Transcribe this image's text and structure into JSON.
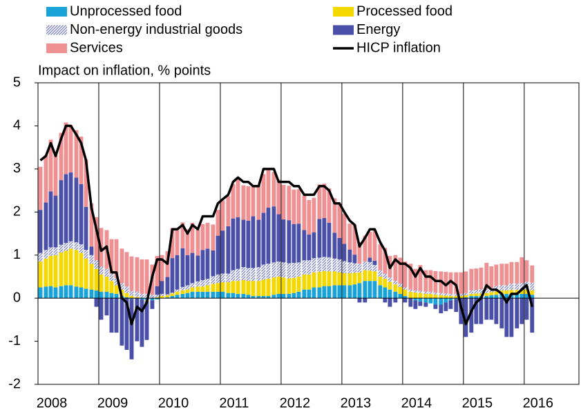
{
  "chart_data": {
    "type": "bar",
    "stacked": true,
    "ylabel": "Impact on inflation,  % points",
    "ylim": [
      -2,
      5
    ],
    "yticks": [
      -2,
      -1,
      0,
      1,
      2,
      3,
      4,
      5
    ],
    "xlim": [
      2008,
      2016.9
    ],
    "xticks": [
      2008,
      2009,
      2010,
      2011,
      2012,
      2013,
      2014,
      2015,
      2016
    ],
    "grid": true,
    "x": [
      2008.04,
      2008.13,
      2008.21,
      2008.29,
      2008.38,
      2008.46,
      2008.54,
      2008.63,
      2008.71,
      2008.79,
      2008.88,
      2008.96,
      2009.04,
      2009.13,
      2009.21,
      2009.29,
      2009.38,
      2009.46,
      2009.54,
      2009.63,
      2009.71,
      2009.79,
      2009.88,
      2009.96,
      2010.04,
      2010.13,
      2010.21,
      2010.29,
      2010.38,
      2010.46,
      2010.54,
      2010.63,
      2010.71,
      2010.79,
      2010.88,
      2010.96,
      2011.04,
      2011.13,
      2011.21,
      2011.29,
      2011.38,
      2011.46,
      2011.54,
      2011.63,
      2011.71,
      2011.79,
      2011.88,
      2011.96,
      2012.04,
      2012.13,
      2012.21,
      2012.29,
      2012.38,
      2012.46,
      2012.54,
      2012.63,
      2012.71,
      2012.79,
      2012.88,
      2012.96,
      2013.04,
      2013.13,
      2013.21,
      2013.29,
      2013.38,
      2013.46,
      2013.54,
      2013.63,
      2013.71,
      2013.79,
      2013.88,
      2013.96,
      2014.04,
      2014.13,
      2014.21,
      2014.29,
      2014.38,
      2014.46,
      2014.54,
      2014.63,
      2014.71,
      2014.79,
      2014.88,
      2014.96,
      2015.04,
      2015.13,
      2015.21,
      2015.29,
      2015.38,
      2015.46,
      2015.54,
      2015.63,
      2015.71,
      2015.79,
      2015.88,
      2015.96,
      2016.04,
      2016.13
    ],
    "series": [
      {
        "name": "Unprocessed food",
        "type": "bar",
        "color": "#1aa3d9",
        "values": [
          0.25,
          0.27,
          0.28,
          0.25,
          0.28,
          0.3,
          0.3,
          0.27,
          0.25,
          0.22,
          0.2,
          0.18,
          0.15,
          0.15,
          0.12,
          0.1,
          0.05,
          0.02,
          -0.02,
          0,
          -0.03,
          -0.05,
          -0.05,
          -0.03,
          0,
          0.02,
          0.05,
          0.08,
          0.1,
          0.12,
          0.15,
          0.15,
          0.15,
          0.15,
          0.15,
          0.15,
          0.15,
          0.12,
          0.12,
          0.1,
          0.1,
          0.08,
          0.05,
          0.05,
          0.05,
          0.05,
          0.08,
          0.1,
          0.1,
          0.1,
          0.12,
          0.15,
          0.2,
          0.2,
          0.25,
          0.25,
          0.28,
          0.28,
          0.3,
          0.3,
          0.3,
          0.3,
          0.32,
          0.35,
          0.4,
          0.4,
          0.4,
          0.3,
          0.25,
          0.2,
          0.15,
          0.1,
          0.05,
          0,
          -0.05,
          -0.08,
          -0.1,
          -0.12,
          -0.15,
          -0.15,
          -0.1,
          -0.05,
          -0.02,
          0,
          0.02,
          0.05,
          0.05,
          0.05,
          0.05,
          0.07,
          0.08,
          0.1,
          0.1,
          0.1,
          0.1,
          0.1,
          0.1,
          0.08
        ]
      },
      {
        "name": "Processed food",
        "type": "bar",
        "color": "#f5d800",
        "values": [
          0.6,
          0.65,
          0.7,
          0.75,
          0.78,
          0.8,
          0.85,
          0.85,
          0.8,
          0.7,
          0.6,
          0.5,
          0.4,
          0.35,
          0.28,
          0.2,
          0.15,
          0.1,
          0.05,
          0.03,
          0,
          -0.02,
          0,
          0.02,
          0.05,
          0.05,
          0.06,
          0.07,
          0.08,
          0.08,
          0.1,
          0.12,
          0.12,
          0.15,
          0.18,
          0.2,
          0.22,
          0.25,
          0.28,
          0.3,
          0.32,
          0.32,
          0.35,
          0.35,
          0.38,
          0.4,
          0.4,
          0.4,
          0.38,
          0.36,
          0.35,
          0.35,
          0.35,
          0.35,
          0.35,
          0.36,
          0.35,
          0.34,
          0.32,
          0.3,
          0.28,
          0.28,
          0.27,
          0.25,
          0.25,
          0.24,
          0.22,
          0.2,
          0.2,
          0.18,
          0.17,
          0.16,
          0.15,
          0.15,
          0.13,
          0.12,
          0.1,
          0.1,
          0.08,
          0.07,
          0.06,
          0.05,
          0.05,
          0.05,
          0.05,
          0.05,
          0.06,
          0.06,
          0.07,
          0.07,
          0.08,
          0.08,
          0.08,
          0.09,
          0.09,
          0.1,
          0.1,
          0.1
        ]
      },
      {
        "name": "Non-energy industrial goods",
        "type": "bar",
        "color": "#7a80c0",
        "hatch": true,
        "values": [
          0.2,
          0.2,
          0.2,
          0.18,
          0.18,
          0.18,
          0.17,
          0.18,
          0.2,
          0.2,
          0.2,
          0.2,
          0.18,
          0.18,
          0.17,
          0.17,
          0.15,
          0.15,
          0.12,
          0.12,
          0.1,
          0.1,
          0.08,
          0.06,
          0.05,
          0.02,
          0.02,
          0.05,
          0.08,
          0.1,
          0.1,
          0.12,
          0.15,
          0.15,
          0.18,
          0.2,
          0.2,
          0.2,
          0.25,
          0.28,
          0.3,
          0.3,
          0.3,
          0.32,
          0.35,
          0.35,
          0.35,
          0.35,
          0.35,
          0.35,
          0.35,
          0.33,
          0.33,
          0.33,
          0.33,
          0.33,
          0.33,
          0.33,
          0.3,
          0.3,
          0.28,
          0.25,
          0.22,
          0.2,
          0.2,
          0.2,
          0.15,
          0.15,
          0.12,
          0.1,
          0.08,
          0.08,
          0.05,
          0.05,
          0.05,
          0.05,
          0.05,
          0.05,
          0.05,
          0.05,
          0.05,
          0.05,
          0.05,
          0.05,
          0.05,
          0.08,
          0.08,
          0.1,
          0.1,
          0.1,
          0.12,
          0.12,
          0.12,
          0.15,
          0.15,
          0.15,
          0.18,
          0.18
        ]
      },
      {
        "name": "Energy",
        "type": "bar",
        "color": "#4a4fa8",
        "values": [
          1.0,
          1.1,
          1.3,
          1.2,
          1.5,
          1.6,
          1.6,
          1.5,
          1.4,
          1.0,
          0.2,
          -0.2,
          -0.5,
          -0.4,
          -0.8,
          -0.8,
          -1.1,
          -1.2,
          -1.4,
          -1.0,
          -1.1,
          -0.9,
          -0.2,
          0.2,
          0.3,
          0.4,
          0.8,
          0.8,
          0.9,
          0.7,
          0.7,
          0.6,
          0.7,
          0.7,
          0.6,
          0.9,
          1.0,
          1.1,
          1.2,
          1.2,
          1.1,
          1.1,
          1.2,
          1.1,
          1.2,
          1.3,
          1.3,
          1.1,
          1.0,
          1.0,
          0.9,
          0.9,
          0.7,
          0.6,
          0.6,
          0.9,
          0.9,
          0.8,
          0.6,
          0.5,
          0.4,
          0.3,
          0.2,
          -0.1,
          -0.1,
          0.1,
          0.1,
          0,
          -0.1,
          -0.2,
          -0.1,
          0,
          -0.1,
          -0.2,
          -0.2,
          -0.1,
          -0.1,
          0,
          -0.1,
          -0.2,
          -0.2,
          -0.2,
          -0.3,
          -0.6,
          -0.9,
          -0.8,
          -0.6,
          -0.6,
          -0.5,
          -0.5,
          -0.6,
          -0.7,
          -0.9,
          -0.9,
          -0.7,
          -0.6,
          -0.5,
          -0.8
        ]
      },
      {
        "name": "Services",
        "type": "bar",
        "color": "#ef9093",
        "values": [
          1.0,
          1.1,
          1.2,
          1.0,
          1.1,
          1.2,
          1.1,
          1.1,
          1.1,
          1.1,
          1.0,
          1.0,
          0.9,
          0.9,
          0.8,
          0.9,
          0.8,
          0.8,
          0.8,
          0.8,
          0.8,
          0.8,
          0.7,
          0.7,
          0.6,
          0.6,
          0.7,
          0.6,
          0.6,
          0.6,
          0.7,
          0.6,
          0.6,
          0.6,
          0.6,
          0.6,
          0.7,
          0.7,
          0.8,
          0.9,
          0.8,
          0.8,
          0.7,
          0.8,
          0.9,
          0.9,
          0.8,
          0.8,
          0.8,
          0.8,
          0.8,
          0.8,
          0.8,
          0.8,
          0.8,
          0.8,
          0.8,
          0.8,
          0.8,
          0.8,
          0.7,
          0.6,
          0.7,
          0.5,
          0.6,
          0.6,
          0.7,
          0.6,
          0.6,
          0.5,
          0.6,
          0.6,
          0.6,
          0.6,
          0.5,
          0.6,
          0.5,
          0.5,
          0.5,
          0.5,
          0.5,
          0.5,
          0.5,
          0.5,
          0.5,
          0.5,
          0.5,
          0.5,
          0.6,
          0.5,
          0.5,
          0.5,
          0.5,
          0.5,
          0.5,
          0.6,
          0.5,
          0.4
        ]
      },
      {
        "name": "HICP inflation",
        "type": "line",
        "color": "#000000",
        "values": [
          3.2,
          3.3,
          3.6,
          3.3,
          3.7,
          4.0,
          4.0,
          3.8,
          3.6,
          3.2,
          2.1,
          1.6,
          1.1,
          1.2,
          0.6,
          0.6,
          0,
          -0.1,
          -0.6,
          -0.2,
          -0.3,
          -0.1,
          0.5,
          0.9,
          0.9,
          0.8,
          1.6,
          1.6,
          1.7,
          1.5,
          1.7,
          1.6,
          1.9,
          1.9,
          1.9,
          2.2,
          2.3,
          2.4,
          2.7,
          2.8,
          2.7,
          2.7,
          2.6,
          2.6,
          3.0,
          3.0,
          3.0,
          2.7,
          2.7,
          2.7,
          2.6,
          2.6,
          2.4,
          2.4,
          2.4,
          2.6,
          2.6,
          2.5,
          2.2,
          2.2,
          2.0,
          1.8,
          1.7,
          1.2,
          1.4,
          1.6,
          1.6,
          1.3,
          1.1,
          0.7,
          0.9,
          0.8,
          0.8,
          0.7,
          0.5,
          0.7,
          0.5,
          0.5,
          0.4,
          0.4,
          0.3,
          0.4,
          0.3,
          -0.2,
          -0.6,
          -0.3,
          -0.1,
          0,
          0.3,
          0.2,
          0.2,
          0.1,
          -0.1,
          0.1,
          0.1,
          0.2,
          0.3,
          -0.2
        ]
      }
    ]
  }
}
